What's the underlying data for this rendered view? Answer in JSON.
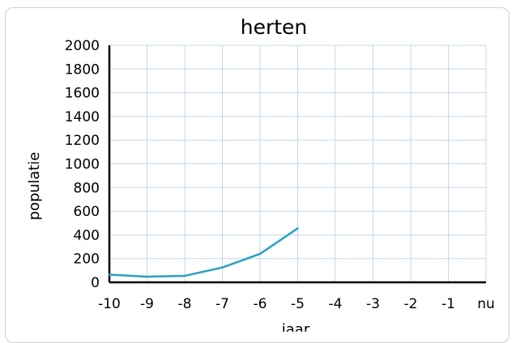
{
  "chart_data": {
    "type": "line",
    "title": "herten",
    "xlabel": "jaar",
    "ylabel": "populatie",
    "categories": [
      "-10",
      "-9",
      "-8",
      "-7",
      "-6",
      "-5",
      "-4",
      "-3",
      "-2",
      "-1",
      "nu"
    ],
    "series": [
      {
        "values": [
          65,
          48,
          55,
          125,
          240,
          455,
          null,
          null,
          null,
          null,
          null
        ],
        "color": "#2a9fc2"
      }
    ],
    "yticks": [
      "0",
      "200",
      "400",
      "600",
      "800",
      "1000",
      "1200",
      "1400",
      "1600",
      "1800",
      "2000"
    ],
    "ylim": [
      0,
      2000
    ],
    "grid": true,
    "colors": {
      "grid": "#c5d8ea",
      "axis": "#000000",
      "frame": "#cfcfcf"
    }
  }
}
